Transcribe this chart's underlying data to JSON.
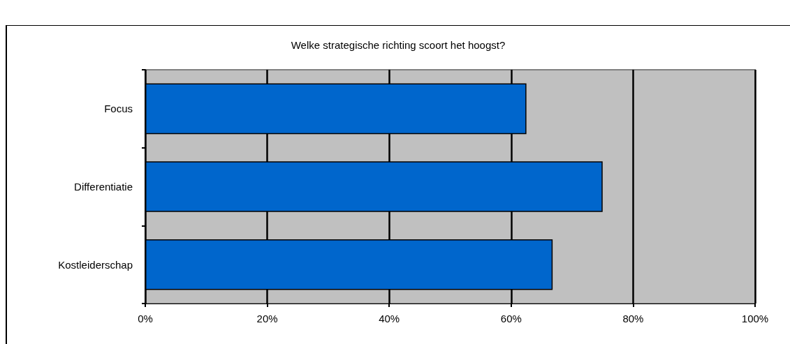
{
  "chart_data": {
    "type": "bar",
    "orientation": "horizontal",
    "title": "Welke strategische richting scoort het hoogst?",
    "categories": [
      "Focus",
      "Differentiatie",
      "Kostleiderschap"
    ],
    "values": [
      62.5,
      75,
      66.8
    ],
    "color": "#0066cc",
    "xlim": [
      0,
      100
    ],
    "xticks": [
      {
        "value": 0,
        "label": "0%"
      },
      {
        "value": 20,
        "label": "20%"
      },
      {
        "value": 40,
        "label": "40%"
      },
      {
        "value": 60,
        "label": "60%"
      },
      {
        "value": 80,
        "label": "80%"
      },
      {
        "value": 100,
        "label": "100%"
      }
    ],
    "grid": "x"
  }
}
